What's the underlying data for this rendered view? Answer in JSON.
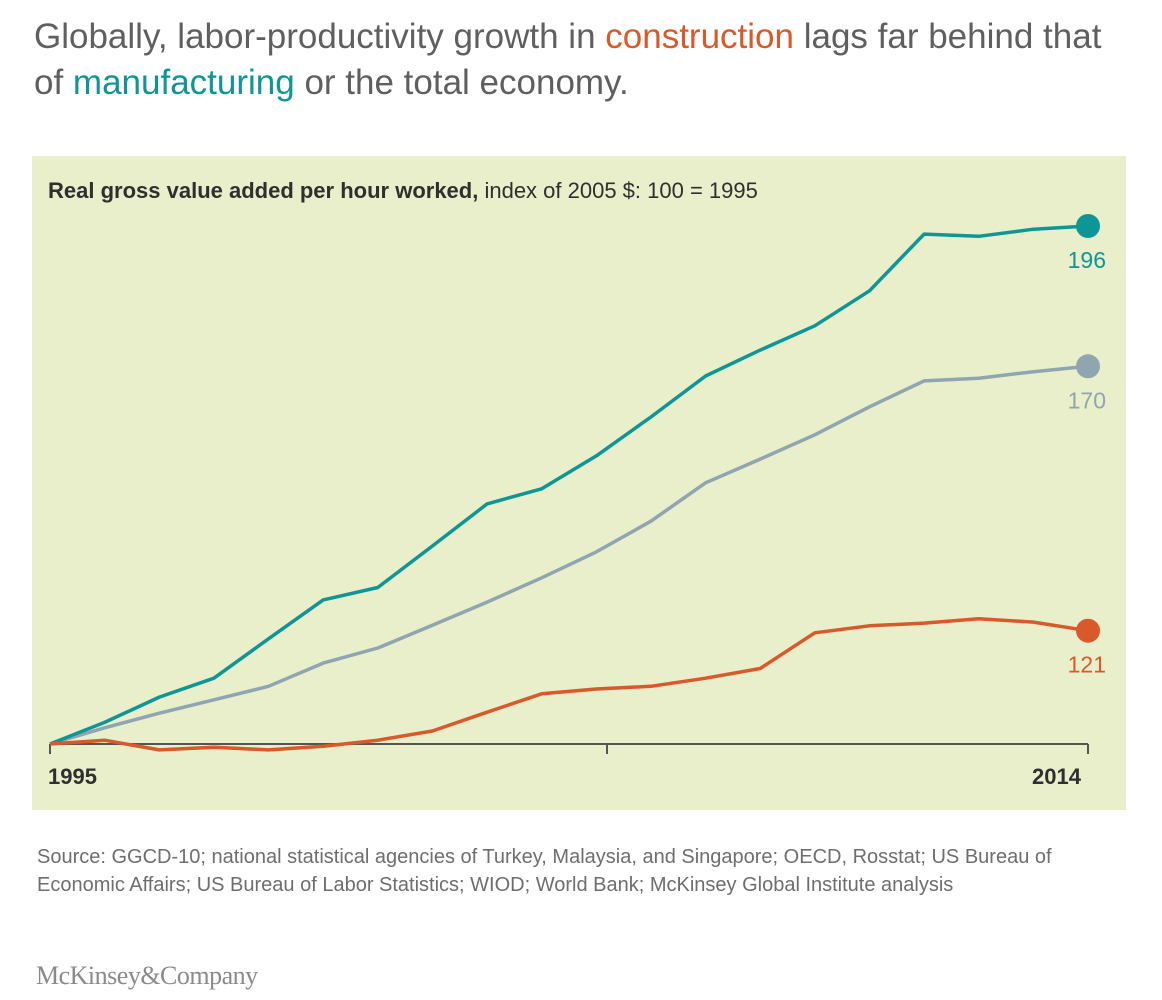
{
  "headline": {
    "part1": "Globally, labor-productivity growth in ",
    "construction": "construction",
    "part2": " lags far behind that of ",
    "manufacturing": "manufacturing",
    "part3": " or the total economy."
  },
  "source": "Source: GGCD-10; national statistical agencies of Turkey, Malaysia, and Singapore; OECD, Rosstat; US Bureau of Economic Affairs; US Bureau of Labor Statistics; WIOD; World Bank; McKinsey Global Institute analysis",
  "logo": "McKinsey&Company",
  "colors": {
    "panel_background": "#e9eecb",
    "construction": "#d8592a",
    "manufacturing": "#0e9696",
    "total_economy": "#8fa5b0",
    "axis": "#555555"
  },
  "chart_data": {
    "type": "line",
    "title_bold": "Real gross value added per hour worked,",
    "title_rest": " index of 2005 $: 100 = 1995",
    "x": [
      1995,
      1996,
      1997,
      1998,
      1999,
      2000,
      2001,
      2002,
      2003,
      2004,
      2005,
      2006,
      2007,
      2008,
      2009,
      2010,
      2011,
      2012,
      2013,
      2014
    ],
    "xlim": [
      1995,
      2014
    ],
    "ylim": [
      100,
      196
    ],
    "x_tick_labels": [
      "1995",
      "2014"
    ],
    "grid": false,
    "series": [
      {
        "name": "manufacturing",
        "color": "#0e9696",
        "end_label": "196",
        "values": [
          100,
          104,
          108.7,
          112.2,
          119.5,
          126.7,
          129,
          136.7,
          144.5,
          147.3,
          153.4,
          160.6,
          168.2,
          173,
          177.5,
          184,
          194.5,
          194.1,
          195.4,
          196
        ]
      },
      {
        "name": "total economy",
        "color": "#8fa5b0",
        "end_label": "170",
        "values": [
          100,
          103,
          105.7,
          108.2,
          110.7,
          115,
          117.8,
          122,
          126.3,
          130.8,
          135.6,
          141.3,
          148.4,
          152.8,
          157.3,
          162.5,
          167.3,
          167.8,
          169,
          170
        ]
      },
      {
        "name": "construction",
        "color": "#d8592a",
        "end_label": "121",
        "values": [
          100,
          100.7,
          98.9,
          99.4,
          98.9,
          99.6,
          100.7,
          102.4,
          105.9,
          109.3,
          110.2,
          110.7,
          112.2,
          114,
          120.6,
          121.9,
          122.4,
          123.2,
          122.6,
          121
        ]
      }
    ]
  }
}
